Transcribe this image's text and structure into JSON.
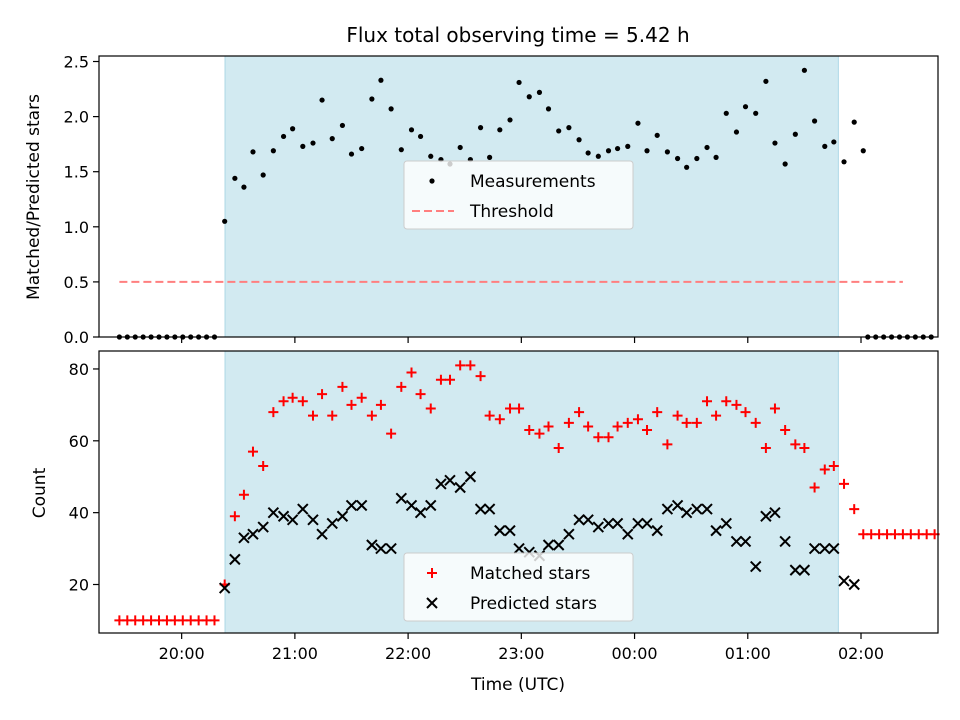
{
  "title": "Flux total observing time = 5.42 h",
  "colors": {
    "window": "#add8e6",
    "measurement": "#000000",
    "threshold": "#ff7f7f",
    "matched": "#ff0000",
    "predicted": "#000000"
  },
  "x_axis": {
    "label": "Time (UTC)",
    "ticks": [
      {
        "t": 20.0,
        "label": "20:00"
      },
      {
        "t": 21.0,
        "label": "21:00"
      },
      {
        "t": 22.0,
        "label": "22:00"
      },
      {
        "t": 23.0,
        "label": "23:00"
      },
      {
        "t": 24.0,
        "label": "00:00"
      },
      {
        "t": 25.0,
        "label": "01:00"
      },
      {
        "t": 26.0,
        "label": "02:00"
      }
    ],
    "range": [
      19.27,
      26.68
    ]
  },
  "chart_data": [
    {
      "type": "scatter",
      "name": "ratio",
      "ylabel": "Matched/Predicted stars",
      "ylim": [
        0,
        2.55
      ],
      "yticks": [
        "0.0",
        "0.5",
        "1.0",
        "1.5",
        "2.0",
        "2.5"
      ],
      "observing_window": [
        20.383,
        25.8
      ],
      "legend": {
        "placement": "center",
        "entries": [
          "Measurements",
          "Threshold"
        ]
      },
      "threshold": {
        "name": "Threshold",
        "value": 0.5,
        "x": [
          19.45,
          26.37
        ]
      },
      "series": [
        {
          "name": "Measurements",
          "points": [
            [
              19.45,
              0
            ],
            [
              19.52,
              0
            ],
            [
              19.59,
              0
            ],
            [
              19.66,
              0
            ],
            [
              19.73,
              0
            ],
            [
              19.8,
              0
            ],
            [
              19.87,
              0
            ],
            [
              19.94,
              0
            ],
            [
              20.01,
              0
            ],
            [
              20.08,
              0
            ],
            [
              20.15,
              0
            ],
            [
              20.22,
              0
            ],
            [
              20.29,
              0
            ],
            [
              20.38,
              1.05
            ],
            [
              20.47,
              1.44
            ],
            [
              20.55,
              1.36
            ],
            [
              20.63,
              1.68
            ],
            [
              20.72,
              1.47
            ],
            [
              20.81,
              1.69
            ],
            [
              20.9,
              1.82
            ],
            [
              20.98,
              1.89
            ],
            [
              21.07,
              1.73
            ],
            [
              21.16,
              1.76
            ],
            [
              21.24,
              2.15
            ],
            [
              21.33,
              1.8
            ],
            [
              21.42,
              1.92
            ],
            [
              21.5,
              1.66
            ],
            [
              21.59,
              1.71
            ],
            [
              21.68,
              2.16
            ],
            [
              21.76,
              2.33
            ],
            [
              21.85,
              2.07
            ],
            [
              21.94,
              1.7
            ],
            [
              22.03,
              1.88
            ],
            [
              22.11,
              1.82
            ],
            [
              22.2,
              1.64
            ],
            [
              22.29,
              1.61
            ],
            [
              22.37,
              1.57
            ],
            [
              22.46,
              1.72
            ],
            [
              22.55,
              1.61
            ],
            [
              22.64,
              1.9
            ],
            [
              22.72,
              1.63
            ],
            [
              22.81,
              1.88
            ],
            [
              22.9,
              1.97
            ],
            [
              22.98,
              2.31
            ],
            [
              23.07,
              2.18
            ],
            [
              23.16,
              2.22
            ],
            [
              23.24,
              2.07
            ],
            [
              23.33,
              1.87
            ],
            [
              23.42,
              1.9
            ],
            [
              23.51,
              1.79
            ],
            [
              23.59,
              1.67
            ],
            [
              23.68,
              1.64
            ],
            [
              23.77,
              1.69
            ],
            [
              23.85,
              1.71
            ],
            [
              23.94,
              1.73
            ],
            [
              24.03,
              1.94
            ],
            [
              24.11,
              1.69
            ],
            [
              24.2,
              1.83
            ],
            [
              24.29,
              1.68
            ],
            [
              24.38,
              1.62
            ],
            [
              24.46,
              1.54
            ],
            [
              24.55,
              1.62
            ],
            [
              24.64,
              1.72
            ],
            [
              24.72,
              1.63
            ],
            [
              24.81,
              2.03
            ],
            [
              24.9,
              1.86
            ],
            [
              24.98,
              2.09
            ],
            [
              25.07,
              2.03
            ],
            [
              25.16,
              2.32
            ],
            [
              25.24,
              1.76
            ],
            [
              25.33,
              1.57
            ],
            [
              25.42,
              1.84
            ],
            [
              25.5,
              2.42
            ],
            [
              25.59,
              1.96
            ],
            [
              25.68,
              1.73
            ],
            [
              25.76,
              1.77
            ],
            [
              25.85,
              1.59
            ],
            [
              25.94,
              1.95
            ],
            [
              26.02,
              1.69
            ],
            [
              26.06,
              0
            ],
            [
              26.13,
              0
            ],
            [
              26.2,
              0
            ],
            [
              26.27,
              0
            ],
            [
              26.34,
              0
            ],
            [
              26.41,
              0
            ],
            [
              26.48,
              0
            ],
            [
              26.55,
              0
            ],
            [
              26.62,
              0
            ]
          ]
        }
      ]
    },
    {
      "type": "scatter",
      "name": "counts",
      "ylabel": "Count",
      "xlabel": "Time (UTC)",
      "ylim": [
        6.5,
        85
      ],
      "yticks": [
        "20",
        "40",
        "60",
        "80"
      ],
      "observing_window": [
        20.383,
        25.8
      ],
      "legend": {
        "placement": "bottom-center",
        "entries": [
          "Matched stars",
          "Predicted stars"
        ]
      },
      "series": [
        {
          "name": "Matched stars",
          "points": [
            [
              19.45,
              10
            ],
            [
              19.52,
              10
            ],
            [
              19.59,
              10
            ],
            [
              19.66,
              10
            ],
            [
              19.73,
              10
            ],
            [
              19.8,
              10
            ],
            [
              19.87,
              10
            ],
            [
              19.94,
              10
            ],
            [
              20.01,
              10
            ],
            [
              20.08,
              10
            ],
            [
              20.15,
              10
            ],
            [
              20.22,
              10
            ],
            [
              20.29,
              10
            ],
            [
              20.38,
              20
            ],
            [
              20.47,
              39
            ],
            [
              20.55,
              45
            ],
            [
              20.63,
              57
            ],
            [
              20.72,
              53
            ],
            [
              20.81,
              68
            ],
            [
              20.9,
              71
            ],
            [
              20.98,
              72
            ],
            [
              21.07,
              71
            ],
            [
              21.16,
              67
            ],
            [
              21.24,
              73
            ],
            [
              21.33,
              67
            ],
            [
              21.42,
              75
            ],
            [
              21.5,
              70
            ],
            [
              21.59,
              72
            ],
            [
              21.68,
              67
            ],
            [
              21.76,
              70
            ],
            [
              21.85,
              62
            ],
            [
              21.94,
              75
            ],
            [
              22.03,
              79
            ],
            [
              22.11,
              73
            ],
            [
              22.2,
              69
            ],
            [
              22.29,
              77
            ],
            [
              22.37,
              77
            ],
            [
              22.46,
              81
            ],
            [
              22.55,
              81
            ],
            [
              22.64,
              78
            ],
            [
              22.72,
              67
            ],
            [
              22.81,
              66
            ],
            [
              22.9,
              69
            ],
            [
              22.98,
              69
            ],
            [
              23.07,
              63
            ],
            [
              23.16,
              62
            ],
            [
              23.24,
              64
            ],
            [
              23.33,
              58
            ],
            [
              23.42,
              65
            ],
            [
              23.51,
              68
            ],
            [
              23.59,
              64
            ],
            [
              23.68,
              61
            ],
            [
              23.77,
              61
            ],
            [
              23.85,
              64
            ],
            [
              23.94,
              65
            ],
            [
              24.03,
              66
            ],
            [
              24.11,
              63
            ],
            [
              24.2,
              68
            ],
            [
              24.29,
              59
            ],
            [
              24.38,
              67
            ],
            [
              24.46,
              65
            ],
            [
              24.55,
              65
            ],
            [
              24.64,
              71
            ],
            [
              24.72,
              67
            ],
            [
              24.81,
              71
            ],
            [
              24.9,
              70
            ],
            [
              24.98,
              68
            ],
            [
              25.07,
              65
            ],
            [
              25.16,
              58
            ],
            [
              25.24,
              69
            ],
            [
              25.33,
              63
            ],
            [
              25.42,
              59
            ],
            [
              25.5,
              58
            ],
            [
              25.59,
              47
            ],
            [
              25.68,
              52
            ],
            [
              25.76,
              53
            ],
            [
              25.85,
              48
            ],
            [
              25.94,
              41
            ],
            [
              26.02,
              34
            ],
            [
              26.09,
              34
            ],
            [
              26.16,
              34
            ],
            [
              26.23,
              34
            ],
            [
              26.3,
              34
            ],
            [
              26.37,
              34
            ],
            [
              26.44,
              34
            ],
            [
              26.51,
              34
            ],
            [
              26.58,
              34
            ],
            [
              26.65,
              34
            ]
          ]
        },
        {
          "name": "Predicted stars",
          "points": [
            [
              20.38,
              19
            ],
            [
              20.47,
              27
            ],
            [
              20.55,
              33
            ],
            [
              20.63,
              34
            ],
            [
              20.72,
              36
            ],
            [
              20.81,
              40
            ],
            [
              20.9,
              39
            ],
            [
              20.98,
              38
            ],
            [
              21.07,
              41
            ],
            [
              21.16,
              38
            ],
            [
              21.24,
              34
            ],
            [
              21.33,
              37
            ],
            [
              21.42,
              39
            ],
            [
              21.5,
              42
            ],
            [
              21.59,
              42
            ],
            [
              21.68,
              31
            ],
            [
              21.76,
              30
            ],
            [
              21.85,
              30
            ],
            [
              21.94,
              44
            ],
            [
              22.03,
              42
            ],
            [
              22.11,
              40
            ],
            [
              22.2,
              42
            ],
            [
              22.29,
              48
            ],
            [
              22.37,
              49
            ],
            [
              22.46,
              47
            ],
            [
              22.55,
              50
            ],
            [
              22.64,
              41
            ],
            [
              22.72,
              41
            ],
            [
              22.81,
              35
            ],
            [
              22.9,
              35
            ],
            [
              22.98,
              30
            ],
            [
              23.07,
              29
            ],
            [
              23.16,
              28
            ],
            [
              23.24,
              31
            ],
            [
              23.33,
              31
            ],
            [
              23.42,
              34
            ],
            [
              23.51,
              38
            ],
            [
              23.59,
              38
            ],
            [
              23.68,
              36
            ],
            [
              23.77,
              37
            ],
            [
              23.85,
              37
            ],
            [
              23.94,
              34
            ],
            [
              24.03,
              37
            ],
            [
              24.11,
              37
            ],
            [
              24.2,
              35
            ],
            [
              24.29,
              41
            ],
            [
              24.38,
              42
            ],
            [
              24.46,
              40
            ],
            [
              24.55,
              41
            ],
            [
              24.64,
              41
            ],
            [
              24.72,
              35
            ],
            [
              24.81,
              37
            ],
            [
              24.9,
              32
            ],
            [
              24.98,
              32
            ],
            [
              25.07,
              25
            ],
            [
              25.16,
              39
            ],
            [
              25.24,
              40
            ],
            [
              25.33,
              32
            ],
            [
              25.42,
              24
            ],
            [
              25.5,
              24
            ],
            [
              25.59,
              30
            ],
            [
              25.68,
              30
            ],
            [
              25.76,
              30
            ],
            [
              25.85,
              21
            ],
            [
              25.94,
              20
            ]
          ]
        }
      ]
    }
  ]
}
